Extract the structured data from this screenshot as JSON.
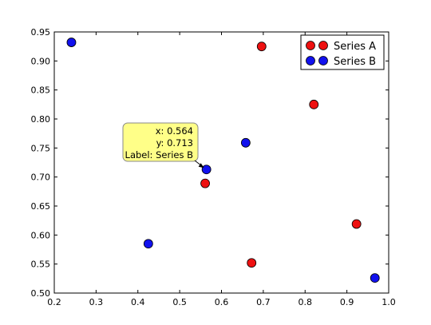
{
  "chart_data": {
    "type": "scatter",
    "xlim": [
      0.2,
      1.0
    ],
    "ylim": [
      0.5,
      0.95
    ],
    "x_ticks": [
      "0.2",
      "0.3",
      "0.4",
      "0.5",
      "0.6",
      "0.7",
      "0.8",
      "0.9",
      "1.0"
    ],
    "y_ticks": [
      "0.50",
      "0.55",
      "0.60",
      "0.65",
      "0.70",
      "0.75",
      "0.80",
      "0.85",
      "0.90",
      "0.95"
    ],
    "grid": false,
    "legend_position": "top-right",
    "series": [
      {
        "name": "Series A",
        "color": "#ee1111",
        "points": [
          {
            "x": 0.696,
            "y": 0.925
          },
          {
            "x": 0.821,
            "y": 0.825
          },
          {
            "x": 0.561,
            "y": 0.689
          },
          {
            "x": 0.923,
            "y": 0.619
          },
          {
            "x": 0.672,
            "y": 0.552
          }
        ]
      },
      {
        "name": "Series B",
        "color": "#1111ee",
        "points": [
          {
            "x": 0.241,
            "y": 0.932
          },
          {
            "x": 0.658,
            "y": 0.759
          },
          {
            "x": 0.564,
            "y": 0.713
          },
          {
            "x": 0.425,
            "y": 0.585
          },
          {
            "x": 0.967,
            "y": 0.526
          }
        ]
      }
    ],
    "annotation": {
      "target": {
        "x": 0.564,
        "y": 0.713
      },
      "lines": [
        "x: 0.564",
        "y: 0.713",
        "Label: Series B"
      ],
      "fill": "#ffff88"
    }
  }
}
